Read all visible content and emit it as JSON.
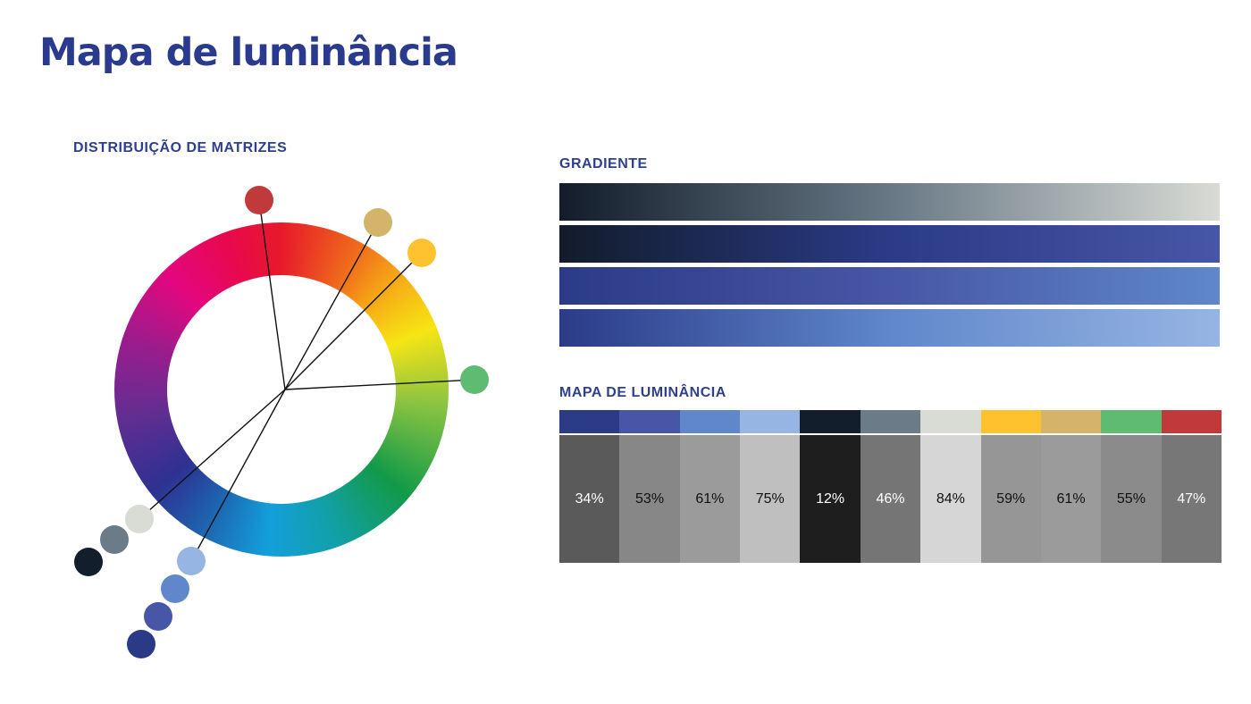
{
  "page": {
    "title": "Mapa de luminância"
  },
  "wheel": {
    "label": "DISTRIBUIÇÃO DE MATRIZES",
    "dots": [
      {
        "name": "red-dot",
        "color": "#c0393b"
      },
      {
        "name": "gold-dot",
        "color": "#d4b46a"
      },
      {
        "name": "yellow-dot",
        "color": "#fdc22e"
      },
      {
        "name": "green-dot",
        "color": "#5fba72"
      },
      {
        "name": "light-gray-dot",
        "color": "#d9dbd5"
      },
      {
        "name": "gray-dot",
        "color": "#6b7b87"
      },
      {
        "name": "navy-dot",
        "color": "#131e2d"
      },
      {
        "name": "light-blue-dot",
        "color": "#97b5e3"
      },
      {
        "name": "mid-blue-dot",
        "color": "#5f87ca"
      },
      {
        "name": "blue-dot",
        "color": "#4756a6"
      },
      {
        "name": "dark-blue-dot",
        "color": "#2a3a86"
      }
    ]
  },
  "gradient": {
    "label": "GRADIENTE",
    "bars": [
      {
        "from": "#121c2a",
        "via": "#687885",
        "to": "#d9dbd5"
      },
      {
        "from": "#121c2a",
        "via": "#2b3b87",
        "to": "#4756a6"
      },
      {
        "from": "#2b3b87",
        "via": "#4756a6",
        "to": "#5f87ca"
      },
      {
        "from": "#2b3b87",
        "via": "#5f87ca",
        "to": "#97b5e3"
      }
    ]
  },
  "luminance": {
    "label": "MAPA DE LUMINÂNCIA",
    "cells": [
      {
        "color": "#2b3b86",
        "value": "34%",
        "gray": "#5a5a5a",
        "text_color": "#ffffff"
      },
      {
        "color": "#4756a6",
        "value": "53%",
        "gray": "#878787",
        "text_color": "#111111"
      },
      {
        "color": "#5f87ca",
        "value": "61%",
        "gray": "#9b9b9b",
        "text_color": "#111111"
      },
      {
        "color": "#97b5e3",
        "value": "75%",
        "gray": "#bfbfbf",
        "text_color": "#111111"
      },
      {
        "color": "#131e2d",
        "value": "12%",
        "gray": "#1e1e1e",
        "text_color": "#ffffff"
      },
      {
        "color": "#6b7b87",
        "value": "46%",
        "gray": "#757575",
        "text_color": "#ffffff"
      },
      {
        "color": "#d9dbd5",
        "value": "84%",
        "gray": "#d6d6d6",
        "text_color": "#111111"
      },
      {
        "color": "#fdc22e",
        "value": "59%",
        "gray": "#969696",
        "text_color": "#111111"
      },
      {
        "color": "#d4b46a",
        "value": "61%",
        "gray": "#9b9b9b",
        "text_color": "#111111"
      },
      {
        "color": "#5fba72",
        "value": "55%",
        "gray": "#8b8b8b",
        "text_color": "#111111"
      },
      {
        "color": "#c0393b",
        "value": "47%",
        "gray": "#777777",
        "text_color": "#ffffff"
      }
    ]
  }
}
